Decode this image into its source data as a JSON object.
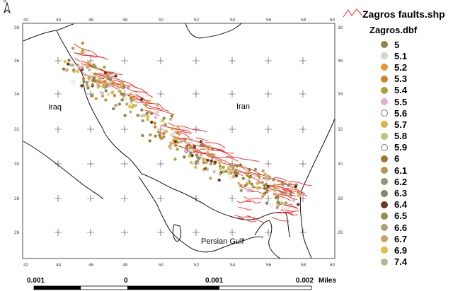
{
  "north_arrow": {
    "label": "N"
  },
  "map": {
    "x_ticks": [
      "42",
      "44",
      "46",
      "48",
      "50",
      "52",
      "54",
      "56",
      "58",
      "60"
    ],
    "y_ticks": [
      "38",
      "36",
      "34",
      "32",
      "30",
      "28",
      "26"
    ],
    "labels": {
      "iraq": "Iraq",
      "iran": "Iran",
      "gulf": "Persian Gulf"
    },
    "fault_color": "#ff2020"
  },
  "legend": {
    "fault_layer": "Zagros faults.shp",
    "quake_layer": "Zagros.dbf",
    "items": [
      {
        "label": "5",
        "color": "#8a8a3a"
      },
      {
        "label": "5.1",
        "color": "#c8dcc8"
      },
      {
        "label": "5.2",
        "color": "#e69a2e"
      },
      {
        "label": "5.3",
        "color": "#d4812a"
      },
      {
        "label": "5.4",
        "color": "#a3a43c"
      },
      {
        "label": "5.5",
        "color": "#e3aed3"
      },
      {
        "label": "5.6",
        "color": "#ffffff"
      },
      {
        "label": "5.7",
        "color": "#d8b63a"
      },
      {
        "label": "5.8",
        "color": "#c2c07a"
      },
      {
        "label": "5.9",
        "color": "#ffffff"
      },
      {
        "label": "6",
        "color": "#9a7a2a"
      },
      {
        "label": "6.1",
        "color": "#b59850"
      },
      {
        "label": "6.2",
        "color": "#8a9a7a"
      },
      {
        "label": "6.3",
        "color": "#7a8a6a"
      },
      {
        "label": "6.4",
        "color": "#6a3a1a"
      },
      {
        "label": "6.5",
        "color": "#9a8a4a"
      },
      {
        "label": "6.6",
        "color": "#b0a070"
      },
      {
        "label": "6.7",
        "color": "#c8a06a"
      },
      {
        "label": "6.9",
        "color": "#e0c040"
      },
      {
        "label": "7.4",
        "color": "#b8b88a"
      }
    ]
  },
  "scalebar": {
    "labels": [
      "0.001",
      "0",
      "0.001",
      "0.002"
    ],
    "units": "Miles"
  }
}
